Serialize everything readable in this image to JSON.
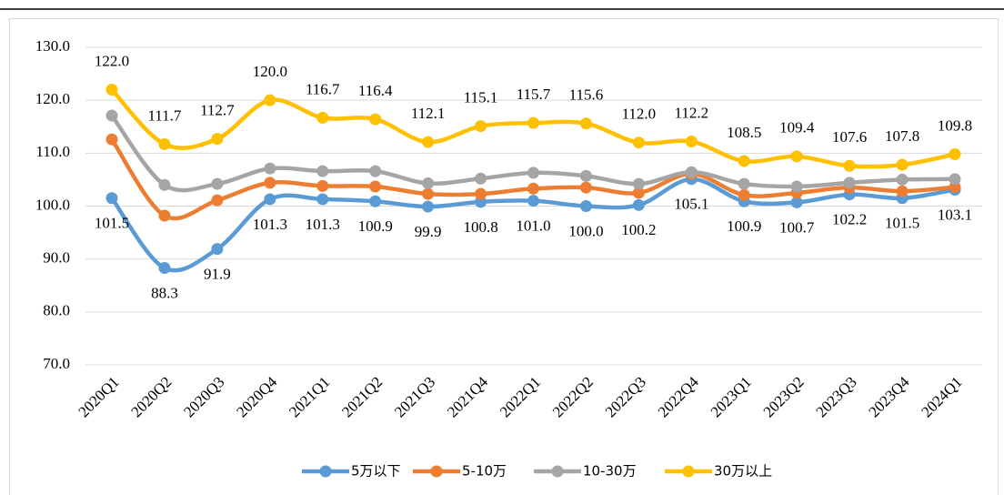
{
  "chart_data": {
    "type": "line",
    "categories": [
      "2020Q1",
      "2020Q2",
      "2020Q3",
      "2020Q4",
      "2021Q1",
      "2021Q2",
      "2021Q3",
      "2021Q4",
      "2022Q1",
      "2022Q2",
      "2022Q3",
      "2022Q4",
      "2023Q1",
      "2023Q2",
      "2023Q3",
      "2023Q4",
      "2024Q1"
    ],
    "ylim": [
      70,
      130
    ],
    "yticks": [
      {
        "value": 70,
        "label": "70.0"
      },
      {
        "value": 80,
        "label": "80.0"
      },
      {
        "value": 90,
        "label": "90.0"
      },
      {
        "value": 100,
        "label": "100.0"
      },
      {
        "value": 110,
        "label": "110.0"
      },
      {
        "value": 120,
        "label": "120.0"
      },
      {
        "value": 130,
        "label": "130.0"
      }
    ],
    "series": [
      {
        "name": "5万以下",
        "color": "#5b9bd5",
        "label_pos": "below",
        "values": [
          101.5,
          88.3,
          91.9,
          101.3,
          101.3,
          100.9,
          99.9,
          100.8,
          101.0,
          100.0,
          100.2,
          105.1,
          100.9,
          100.7,
          102.2,
          101.5,
          103.1
        ],
        "value_labels": [
          "101.5",
          "88.3",
          "91.9",
          "101.3",
          "101.3",
          "100.9",
          "99.9",
          "100.8",
          "101.0",
          "100.0",
          "100.2",
          "105.1",
          "100.9",
          "100.7",
          "102.2",
          "101.5",
          "103.1"
        ]
      },
      {
        "name": "5-10万",
        "color": "#ed7d31",
        "values": [
          112.6,
          98.2,
          101.1,
          104.4,
          103.8,
          103.7,
          102.3,
          102.3,
          103.3,
          103.5,
          102.5,
          106.1,
          102.1,
          102.5,
          103.5,
          102.8,
          103.6
        ]
      },
      {
        "name": "10-30万",
        "color": "#a5a5a5",
        "values": [
          117.1,
          104.0,
          104.2,
          107.1,
          106.6,
          106.6,
          104.3,
          105.2,
          106.3,
          105.7,
          104.2,
          106.4,
          104.2,
          103.7,
          104.4,
          105.0,
          105.1
        ]
      },
      {
        "name": "30万以上",
        "color": "#ffc000",
        "label_pos": "above",
        "values": [
          122.0,
          111.7,
          112.7,
          120.0,
          116.7,
          116.4,
          112.1,
          115.1,
          115.7,
          115.6,
          112.0,
          112.2,
          108.5,
          109.4,
          107.6,
          107.8,
          109.8
        ],
        "value_labels": [
          "122.0",
          "111.7",
          "112.7",
          "120.0",
          "116.7",
          "116.4",
          "112.1",
          "115.1",
          "115.7",
          "115.6",
          "112.0",
          "112.2",
          "108.5",
          "109.4",
          "107.6",
          "107.8",
          "109.8"
        ]
      }
    ]
  }
}
